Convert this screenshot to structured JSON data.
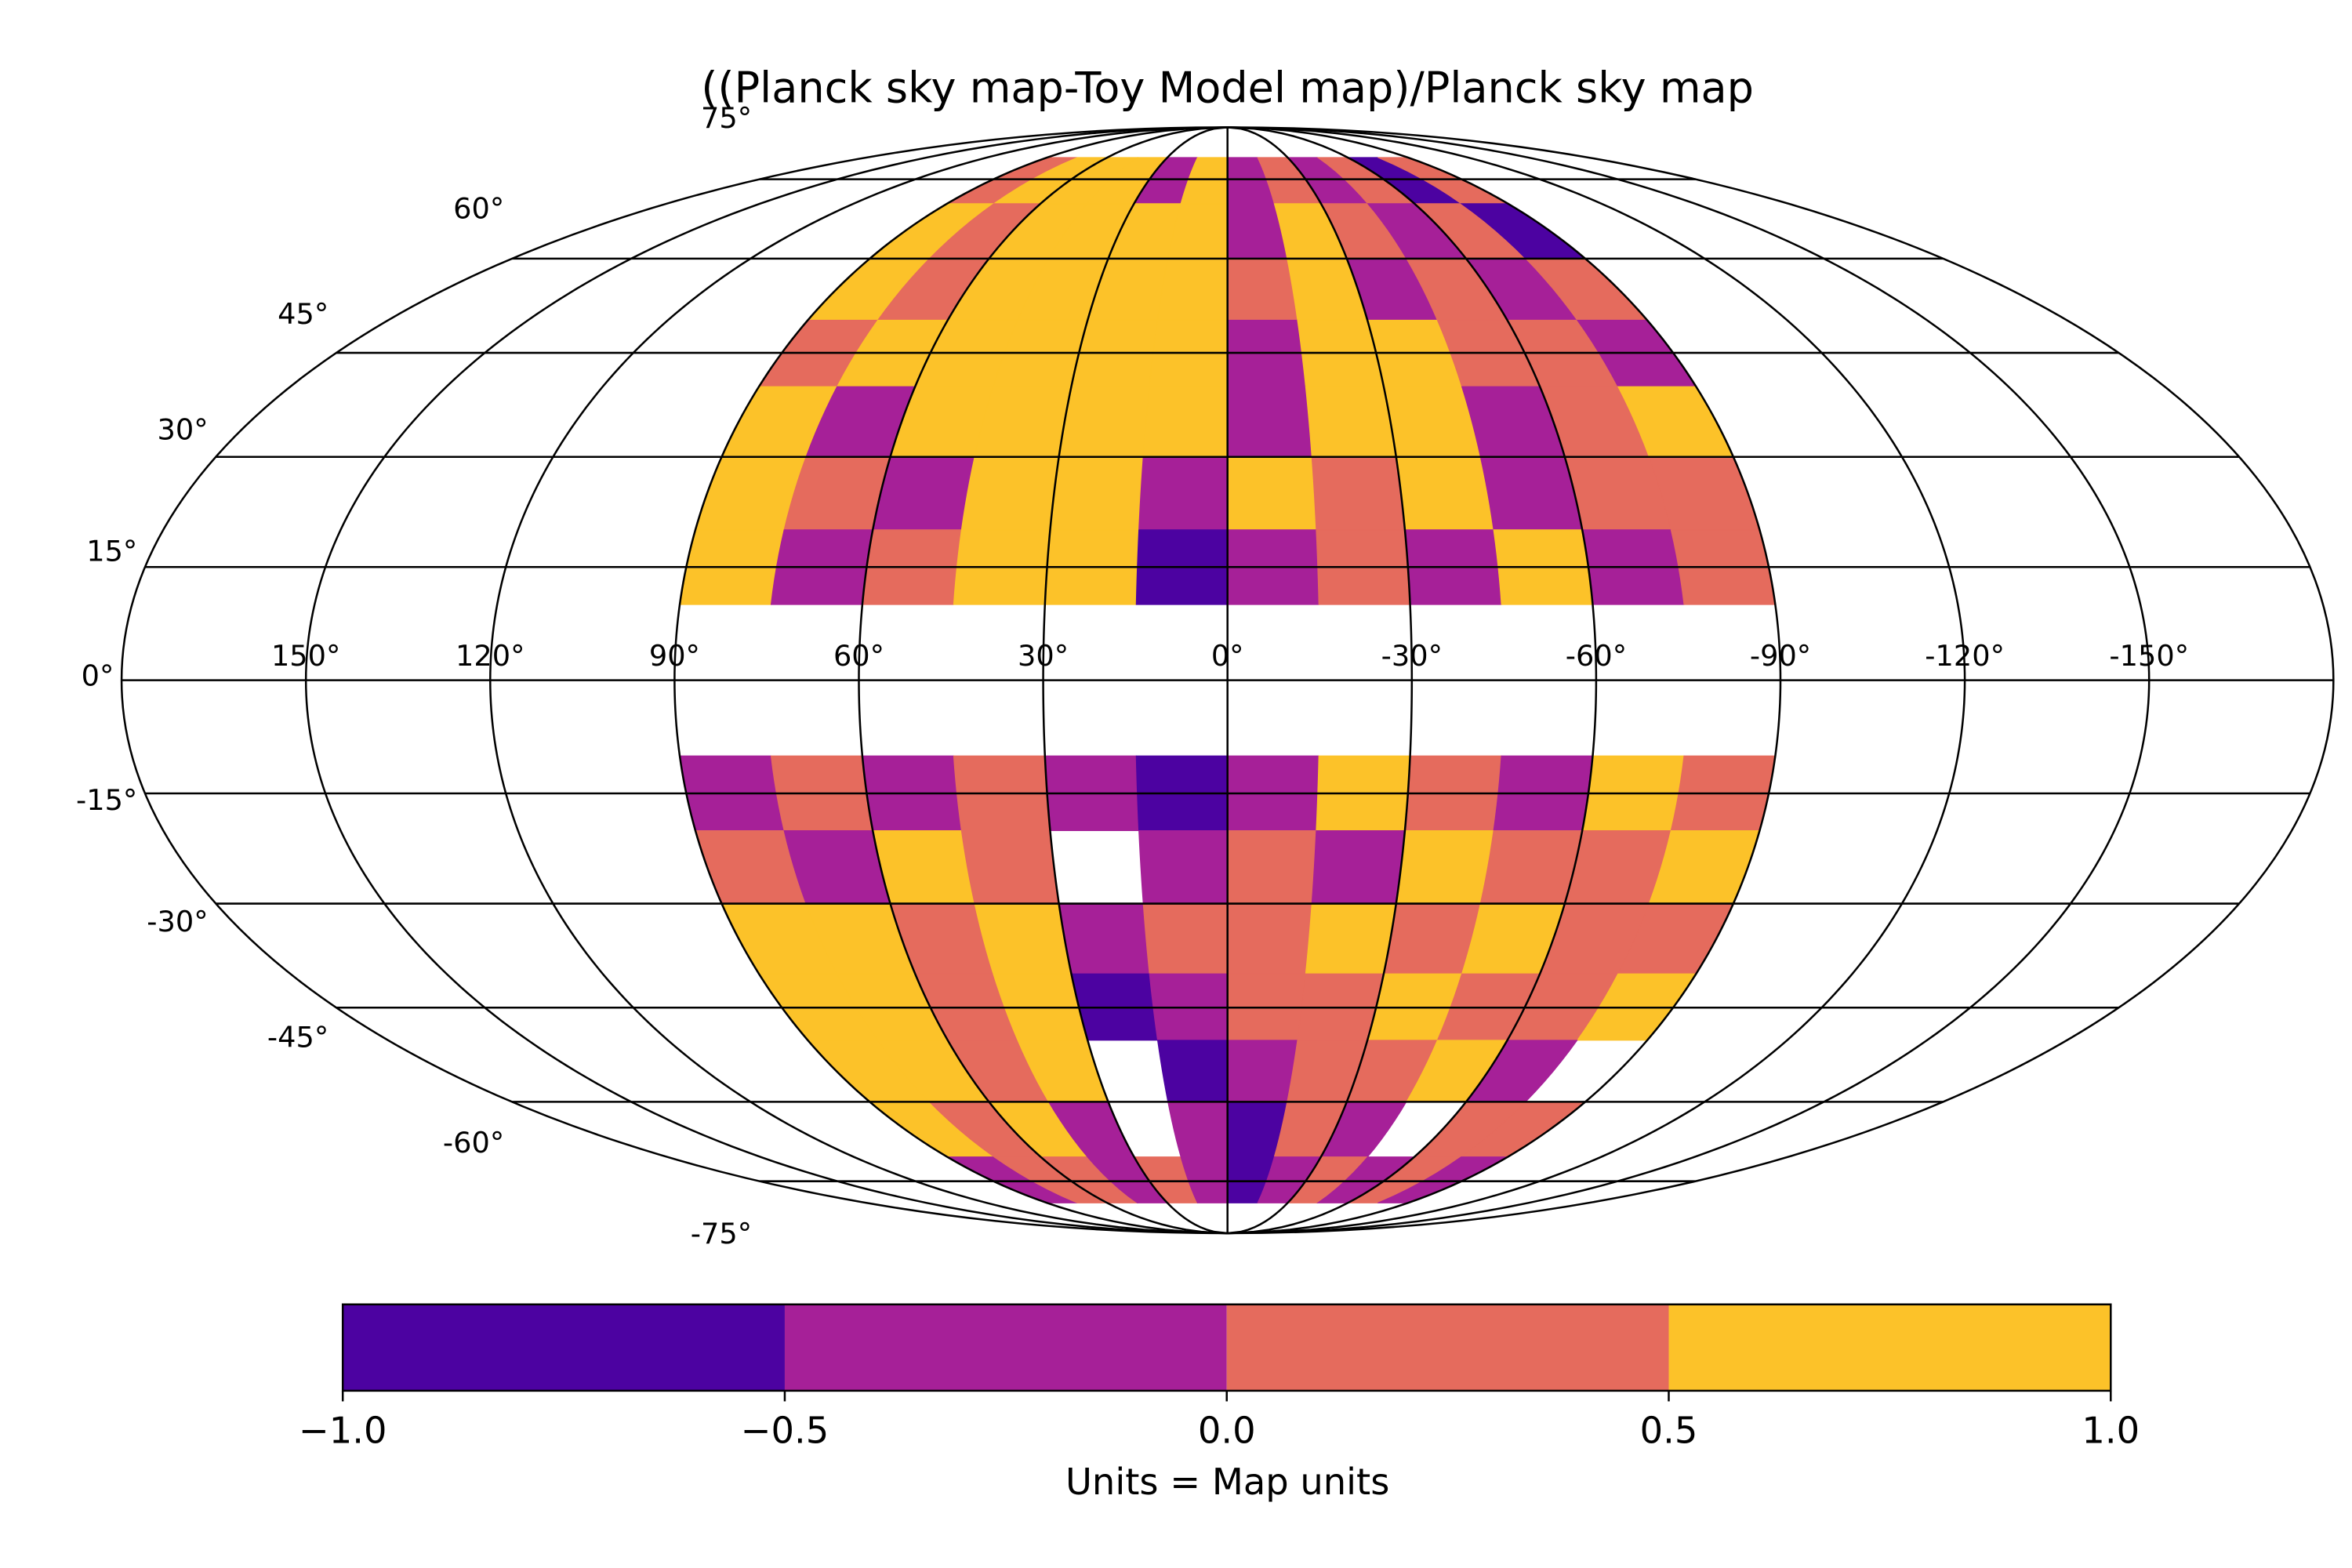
{
  "chart_data": {
    "type": "mollweide-map",
    "title": "((Planck sky map-Toy Model map)/Planck sky map",
    "xlim": [
      180,
      -180
    ],
    "ylim": [
      -90,
      90
    ],
    "xticks": [
      {
        "value": 150,
        "label": "150°"
      },
      {
        "value": 120,
        "label": "120°"
      },
      {
        "value": 90,
        "label": "90°"
      },
      {
        "value": 60,
        "label": "60°"
      },
      {
        "value": 30,
        "label": "30°"
      },
      {
        "value": 0,
        "label": "0°"
      },
      {
        "value": -30,
        "label": "-30°"
      },
      {
        "value": -60,
        "label": "-60°"
      },
      {
        "value": -90,
        "label": "-90°"
      },
      {
        "value": -120,
        "label": "-120°"
      },
      {
        "value": -150,
        "label": "-150°"
      }
    ],
    "yticks": [
      {
        "value": 75,
        "label": "75°"
      },
      {
        "value": 60,
        "label": "60°"
      },
      {
        "value": 45,
        "label": "45°"
      },
      {
        "value": 30,
        "label": "30°"
      },
      {
        "value": 15,
        "label": "15°"
      },
      {
        "value": 0,
        "label": "0°"
      },
      {
        "value": -15,
        "label": "-15°"
      },
      {
        "value": -30,
        "label": "-30°"
      },
      {
        "value": -45,
        "label": "-45°"
      },
      {
        "value": -60,
        "label": "-60°"
      },
      {
        "value": -75,
        "label": "-75°"
      }
    ],
    "grid": true,
    "lon_edges": [
      90,
      75,
      60,
      45,
      30,
      15,
      0,
      -15,
      -30,
      -45,
      -60,
      -75,
      -90
    ],
    "lat_edges": [
      80,
      70,
      60,
      50,
      40,
      30,
      20,
      10,
      -10,
      -20,
      -30,
      -40,
      -50,
      -60,
      -70,
      -80
    ],
    "values": [
      [
        0.2,
        0.6,
        0.7,
        0.6,
        -0.3,
        0.7,
        -0.3,
        0.2,
        -0.4,
        0.3,
        -0.6,
        0.2
      ],
      [
        0.7,
        0.3,
        0.7,
        0.8,
        0.7,
        0.8,
        -0.3,
        0.6,
        0.2,
        -0.3,
        0.3,
        -0.6
      ],
      [
        0.6,
        0.3,
        0.8,
        0.8,
        0.8,
        0.7,
        0.3,
        0.6,
        -0.3,
        0.2,
        -0.4,
        0.3
      ],
      [
        0.2,
        0.7,
        0.8,
        0.9,
        0.8,
        0.7,
        -0.3,
        0.6,
        0.6,
        0.2,
        0.3,
        -0.3
      ],
      [
        0.7,
        -0.3,
        0.8,
        0.9,
        0.8,
        0.7,
        -0.4,
        0.7,
        0.6,
        -0.2,
        0.3,
        0.6
      ],
      [
        0.7,
        0.3,
        -0.3,
        0.8,
        0.7,
        -0.3,
        0.6,
        0.2,
        0.6,
        -0.3,
        0.2,
        0.3
      ],
      [
        0.6,
        -0.3,
        0.3,
        0.8,
        0.7,
        -0.6,
        -0.3,
        0.2,
        -0.3,
        0.6,
        -0.3,
        0.3
      ],
      [
        null,
        null,
        null,
        null,
        null,
        null,
        null,
        null,
        null,
        null,
        null,
        null
      ],
      [
        -0.3,
        0.2,
        -0.3,
        0.2,
        -0.3,
        -0.6,
        -0.3,
        0.6,
        0.3,
        -0.3,
        0.6,
        0.2
      ],
      [
        0.3,
        -0.3,
        0.6,
        0.2,
        null,
        -0.3,
        0.3,
        -0.3,
        0.6,
        0.2,
        0.3,
        0.6
      ],
      [
        0.7,
        0.6,
        0.3,
        0.6,
        -0.3,
        0.2,
        0.3,
        0.6,
        0.2,
        0.6,
        0.3,
        0.2
      ],
      [
        0.7,
        0.6,
        0.3,
        0.6,
        -0.6,
        -0.3,
        0.3,
        0.2,
        0.6,
        0.3,
        0.2,
        0.6
      ],
      [
        0.6,
        0.7,
        0.2,
        0.6,
        null,
        -0.6,
        -0.3,
        0.3,
        0.3,
        0.6,
        -0.3,
        null
      ],
      [
        0.7,
        0.3,
        0.6,
        -0.3,
        null,
        -0.3,
        -0.6,
        0.2,
        -0.3,
        null,
        0.2,
        0.2
      ],
      [
        -0.3,
        0.3,
        0.2,
        -0.3,
        0.3,
        -0.3,
        -0.6,
        -0.3,
        0.3,
        -0.3,
        0.2,
        -0.3
      ]
    ],
    "colorbar": {
      "bounds": [
        -1,
        -0.5,
        0,
        0.5,
        1
      ],
      "colors": [
        "#4c02a1",
        "#a62098",
        "#e56b5d",
        "#fcc229"
      ],
      "ticks": [
        {
          "value": -1,
          "label": "−1.0"
        },
        {
          "value": -0.5,
          "label": "−0.5"
        },
        {
          "value": 0,
          "label": "0.0"
        },
        {
          "value": 0.5,
          "label": "0.5"
        },
        {
          "value": 1,
          "label": "1.0"
        }
      ],
      "label": "Units = Map units"
    }
  }
}
